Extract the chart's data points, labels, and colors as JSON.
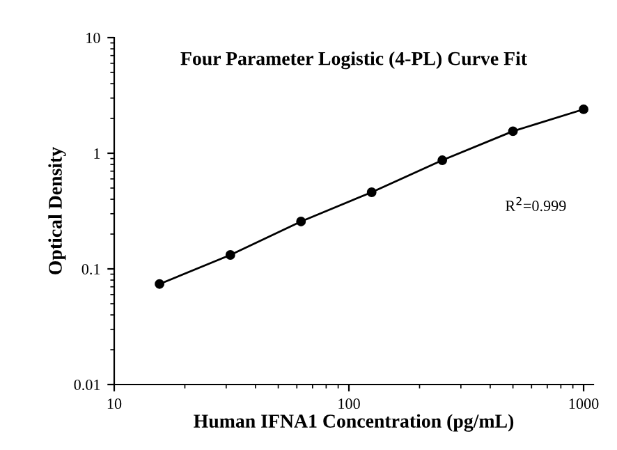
{
  "chart_data": {
    "type": "line",
    "title": "Four Parameter Logistic (4-PL) Curve Fit",
    "xlabel": "Human IFNA1 Concentration (pg/mL)",
    "ylabel": "Optical Density",
    "x": [
      15.6,
      31.25,
      62.5,
      125,
      250,
      500,
      1000
    ],
    "series": [
      {
        "color": "#000000",
        "values": [
          0.074,
          0.132,
          0.257,
          0.46,
          0.87,
          1.55,
          2.4
        ]
      }
    ],
    "annotations": [
      "R$^{2}$=0.999"
    ],
    "log": "xy",
    "xlim": [
      10,
      1100
    ],
    "ylim": [
      0.01,
      10
    ],
    "xticks": [
      10,
      100,
      1000
    ],
    "yticks": [
      0.01,
      0.1,
      1,
      10
    ],
    "marker": "circle",
    "line_style": "solid",
    "grid": false,
    "legend": false
  }
}
